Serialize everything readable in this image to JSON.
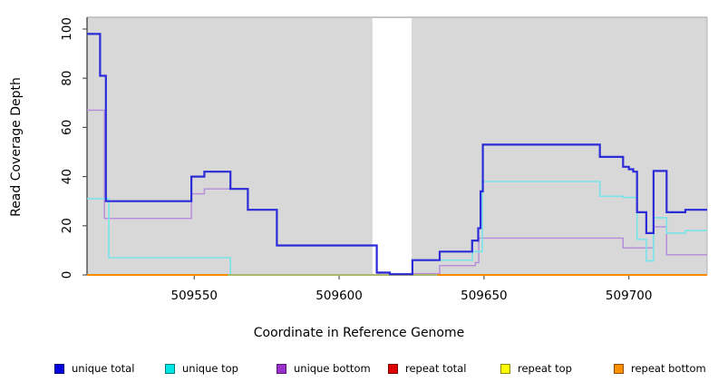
{
  "figure": {
    "background": "#ffffff",
    "plot_bg": "#d8d8d8",
    "axis_color": "#333333",
    "box_border_color": "#b0b0b0",
    "tick_color": "#555555",
    "masked_band_color": "#ffffff"
  },
  "chart_data": {
    "type": "line",
    "subtype": "step-after coverage plot",
    "title": "",
    "xlabel": "Coordinate in Reference Genome",
    "ylabel": "Read Coverage Depth",
    "xlim": [
      509513,
      509727
    ],
    "ylim": [
      0,
      100
    ],
    "xticks": [
      509550,
      509600,
      509650,
      509700
    ],
    "yticks": [
      0,
      20,
      40,
      60,
      80,
      100
    ],
    "grid": false,
    "legend_position": "bottom",
    "masked_region": {
      "x_start": 509611.5,
      "x_end": 509625,
      "note": "white vertical band, no background"
    },
    "series": [
      {
        "name": "unique total",
        "in_legend": true,
        "legend_color": "#0000e0",
        "line_color": "#2b2bd8",
        "line_width": 2.2,
        "z": 7,
        "steps": [
          [
            509513,
            98
          ],
          [
            509517.5,
            81
          ],
          [
            509519.5,
            30
          ],
          [
            509549,
            40
          ],
          [
            509553.5,
            42
          ],
          [
            509562.5,
            35
          ],
          [
            509568.5,
            26.5
          ],
          [
            509578.5,
            12
          ],
          [
            509613,
            1
          ],
          [
            509617.5,
            0.3
          ],
          [
            509625.3,
            6
          ],
          [
            509634.7,
            9.5
          ],
          [
            509645.9,
            14
          ],
          [
            509648,
            19
          ],
          [
            509648.8,
            34
          ],
          [
            509649.6,
            53
          ],
          [
            509690,
            48
          ],
          [
            509698,
            44
          ],
          [
            509700,
            43
          ],
          [
            509701.5,
            42
          ],
          [
            509702.8,
            25.5
          ],
          [
            509706,
            17
          ],
          [
            509708.5,
            42.3
          ],
          [
            509713,
            25.5
          ],
          [
            509719.5,
            26.5
          ],
          [
            509727,
            26.5
          ]
        ]
      },
      {
        "name": "unique top",
        "in_legend": true,
        "legend_color": "#00e5e5",
        "line_color": "#78e4ea",
        "line_width": 1.6,
        "z": 4,
        "steps": [
          [
            509513,
            31
          ],
          [
            509520.5,
            7
          ],
          [
            509562.5,
            0
          ],
          [
            509625.3,
            6
          ],
          [
            509646,
            9.5
          ],
          [
            509649.4,
            38
          ],
          [
            509690,
            32
          ],
          [
            509698,
            31.5
          ],
          [
            509702.8,
            14.5
          ],
          [
            509706,
            5.7
          ],
          [
            509708.5,
            23.3
          ],
          [
            509713,
            17
          ],
          [
            509719.5,
            18
          ],
          [
            509727,
            18
          ]
        ]
      },
      {
        "name": "unique bottom",
        "in_legend": true,
        "legend_color": "#9932cc",
        "line_color": "#b48cd9",
        "line_width": 1.4,
        "z": 3,
        "steps": [
          [
            509513,
            67
          ],
          [
            509519,
            23
          ],
          [
            509549,
            33
          ],
          [
            509553.5,
            35
          ],
          [
            509568.5,
            26.5
          ],
          [
            509578.5,
            12
          ],
          [
            509613,
            0.5
          ],
          [
            509634.7,
            3.8
          ],
          [
            509647,
            5
          ],
          [
            509648.2,
            15
          ],
          [
            509698,
            11
          ],
          [
            509708.5,
            19.6
          ],
          [
            509713,
            8.2
          ],
          [
            509727,
            8.2
          ]
        ]
      },
      {
        "name": "repeat total",
        "in_legend": true,
        "legend_color": "#df0000",
        "line_color": "#cc0000",
        "line_width": 1.4,
        "z": 1,
        "steps": [
          [
            509513,
            0
          ],
          [
            509727,
            0
          ]
        ]
      },
      {
        "name": "repeat top",
        "in_legend": true,
        "legend_color": "#ffff00",
        "line_color": "#e6e600",
        "line_width": 1.4,
        "z": 2,
        "steps": [
          [
            509513,
            0
          ],
          [
            509727,
            0
          ]
        ]
      },
      {
        "name": "repeat bottom",
        "in_legend": true,
        "legend_color": "#ff9100",
        "line_color": "#ff8c00",
        "line_width": 2,
        "z": 5,
        "steps": [
          [
            509513,
            0
          ],
          [
            509727,
            0
          ]
        ]
      },
      {
        "name": "unlabeled green baseline segment",
        "in_legend": false,
        "legend_color": null,
        "line_color": "#90c890",
        "line_width": 1.6,
        "z": 6,
        "steps": [
          [
            509561.5,
            0
          ],
          [
            509634,
            0
          ]
        ]
      }
    ]
  }
}
